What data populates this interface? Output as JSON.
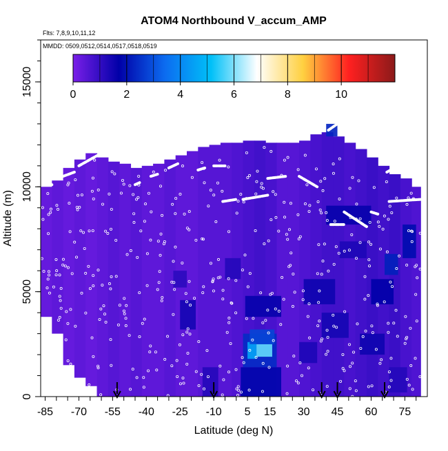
{
  "chart_data": {
    "type": "heatmap",
    "title": "ATOM4 Northbound V_accum_AMP",
    "subtitle_flights": "Flts: 7,8,9,10,11,12",
    "subtitle_dates": "MMDD: 0509,0512,0514,0517,0518,0519",
    "xlabel": "Latitude (deg N)",
    "ylabel": "Altitude (m)",
    "xlim": [
      -87,
      85
    ],
    "ylim": [
      0,
      17000
    ],
    "x_ticks": [
      -85,
      -70,
      -55,
      -40,
      -25,
      -10,
      5,
      15,
      30,
      45,
      60,
      75
    ],
    "y_ticks": [
      0,
      5000,
      10000,
      15000
    ],
    "colorbar": {
      "range": [
        0,
        12
      ],
      "ticks": [
        0,
        2,
        4,
        6,
        8,
        10
      ],
      "colors": [
        "#7a1fe8",
        "#0000a8",
        "#0c6cf0",
        "#00c0f8",
        "#ffffff",
        "#ffd040",
        "#ff2020",
        "#8b1a1a"
      ]
    },
    "grid": false,
    "arrows_latitude": [
      -53,
      -10,
      38,
      45,
      66
    ],
    "columns": [
      {
        "x": [
          -87,
          -82
        ],
        "top": 10000,
        "bottom": 3800,
        "v": 0.3
      },
      {
        "x": [
          -82,
          -77
        ],
        "top": 10300,
        "bottom": 3000,
        "v": 0.4
      },
      {
        "x": [
          -77,
          -72
        ],
        "top": 10900,
        "bottom": 1500,
        "v": 0.3
      },
      {
        "x": [
          -72,
          -67
        ],
        "top": 11300,
        "bottom": 900,
        "v": 0.4
      },
      {
        "x": [
          -67,
          -62
        ],
        "top": 11600,
        "bottom": 500,
        "v": 0.3
      },
      {
        "x": [
          -62,
          -57
        ],
        "top": 11400,
        "bottom": 0,
        "v": 0.4
      },
      {
        "x": [
          -57,
          -52
        ],
        "top": 11200,
        "bottom": 0,
        "v": 0.5
      },
      {
        "x": [
          -52,
          -47
        ],
        "top": 11100,
        "bottom": 0,
        "v": 0.4
      },
      {
        "x": [
          -47,
          -42
        ],
        "top": 10900,
        "bottom": 0,
        "v": 0.5
      },
      {
        "x": [
          -42,
          -37
        ],
        "top": 11000,
        "bottom": 0,
        "v": 0.4
      },
      {
        "x": [
          -37,
          -32
        ],
        "top": 11100,
        "bottom": 0,
        "v": 0.4
      },
      {
        "x": [
          -32,
          -27
        ],
        "top": 11300,
        "bottom": 0,
        "v": 0.5
      },
      {
        "x": [
          -27,
          -22
        ],
        "top": 11500,
        "bottom": 0,
        "v": 0.4
      },
      {
        "x": [
          -22,
          -17
        ],
        "top": 11700,
        "bottom": 0,
        "v": 0.4
      },
      {
        "x": [
          -17,
          -12
        ],
        "top": 11900,
        "bottom": 0,
        "v": 0.5
      },
      {
        "x": [
          -12,
          -7
        ],
        "top": 12000,
        "bottom": 0,
        "v": 0.5
      },
      {
        "x": [
          -7,
          -2
        ],
        "top": 12100,
        "bottom": 0,
        "v": 0.5
      },
      {
        "x": [
          -2,
          3
        ],
        "top": 12100,
        "bottom": 0,
        "v": 0.6
      },
      {
        "x": [
          3,
          8
        ],
        "top": 12200,
        "bottom": 0,
        "v": 0.7
      },
      {
        "x": [
          8,
          13
        ],
        "top": 12200,
        "bottom": 0,
        "v": 0.8
      },
      {
        "x": [
          13,
          18
        ],
        "top": 12100,
        "bottom": 0,
        "v": 0.7
      },
      {
        "x": [
          18,
          23
        ],
        "top": 12100,
        "bottom": 0,
        "v": 0.5
      },
      {
        "x": [
          23,
          28
        ],
        "top": 12100,
        "bottom": 0,
        "v": 0.5
      },
      {
        "x": [
          28,
          33
        ],
        "top": 12200,
        "bottom": 0,
        "v": 0.6
      },
      {
        "x": [
          33,
          38
        ],
        "top": 12500,
        "bottom": 0,
        "v": 0.7
      },
      {
        "x": [
          38,
          43
        ],
        "top": 12600,
        "bottom": 0,
        "v": 0.8
      },
      {
        "x": [
          43,
          48
        ],
        "top": 12400,
        "bottom": 0,
        "v": 0.8
      },
      {
        "x": [
          48,
          53
        ],
        "top": 12100,
        "bottom": 0,
        "v": 0.7
      },
      {
        "x": [
          53,
          58
        ],
        "top": 11800,
        "bottom": 0,
        "v": 0.8
      },
      {
        "x": [
          58,
          63
        ],
        "top": 11400,
        "bottom": 0,
        "v": 0.9
      },
      {
        "x": [
          63,
          68
        ],
        "top": 11000,
        "bottom": 0,
        "v": 0.8
      },
      {
        "x": [
          68,
          73
        ],
        "top": 10600,
        "bottom": 0,
        "v": 0.9
      },
      {
        "x": [
          73,
          78
        ],
        "top": 10400,
        "bottom": 0,
        "v": 0.7
      },
      {
        "x": [
          78,
          82
        ],
        "top": 10000,
        "bottom": 0,
        "v": 0.6
      }
    ],
    "patches": [
      {
        "x": [
          -25,
          -18
        ],
        "y": [
          3200,
          4600
        ],
        "v": 1.4
      },
      {
        "x": [
          -28,
          -22
        ],
        "y": [
          5200,
          6000
        ],
        "v": 1.1
      },
      {
        "x": [
          -15,
          -8
        ],
        "y": [
          0,
          1400
        ],
        "v": 1.2
      },
      {
        "x": [
          -5,
          2
        ],
        "y": [
          5600,
          6600
        ],
        "v": 1.2
      },
      {
        "x": [
          2,
          20
        ],
        "y": [
          0,
          1400
        ],
        "v": 1.8
      },
      {
        "x": [
          3,
          18
        ],
        "y": [
          1400,
          3000
        ],
        "v": 2.4
      },
      {
        "x": [
          5,
          9
        ],
        "y": [
          1800,
          2600
        ],
        "v": 4.5
      },
      {
        "x": [
          9,
          16
        ],
        "y": [
          1900,
          2500
        ],
        "v": 5.8
      },
      {
        "x": [
          6,
          17
        ],
        "y": [
          2500,
          3200
        ],
        "v": 2.8
      },
      {
        "x": [
          4,
          20
        ],
        "y": [
          3800,
          4800
        ],
        "v": 1.6
      },
      {
        "x": [
          28,
          36
        ],
        "y": [
          1600,
          2600
        ],
        "v": 1.3
      },
      {
        "x": [
          30,
          44
        ],
        "y": [
          4400,
          5600
        ],
        "v": 1.5
      },
      {
        "x": [
          38,
          50
        ],
        "y": [
          2800,
          4000
        ],
        "v": 1.4
      },
      {
        "x": [
          40,
          60
        ],
        "y": [
          8200,
          9100
        ],
        "v": 1.6
      },
      {
        "x": [
          46,
          58
        ],
        "y": [
          6600,
          7400
        ],
        "v": 1.3
      },
      {
        "x": [
          55,
          66
        ],
        "y": [
          2000,
          3000
        ],
        "v": 1.5
      },
      {
        "x": [
          60,
          70
        ],
        "y": [
          4400,
          5600
        ],
        "v": 1.7
      },
      {
        "x": [
          66,
          72
        ],
        "y": [
          5800,
          6800
        ],
        "v": 2.2
      },
      {
        "x": [
          74,
          80
        ],
        "y": [
          6600,
          8200
        ],
        "v": 1.9
      },
      {
        "x": [
          68,
          76
        ],
        "y": [
          200,
          1400
        ],
        "v": 1.2
      },
      {
        "x": [
          40,
          45
        ],
        "y": [
          12400,
          13000
        ],
        "v": 2.3
      }
    ],
    "flight_track_segments": [
      {
        "x": [
          -87,
          -82
        ],
        "y": [
          10100,
          10100
        ]
      },
      {
        "x": [
          -77,
          -72
        ],
        "y": [
          10500,
          10700
        ]
      },
      {
        "x": [
          -70,
          -60
        ],
        "y": [
          11000,
          11600
        ]
      },
      {
        "x": [
          -45,
          -43
        ],
        "y": [
          10100,
          10200
        ]
      },
      {
        "x": [
          -38,
          -35
        ],
        "y": [
          10500,
          10600
        ]
      },
      {
        "x": [
          -30,
          -26
        ],
        "y": [
          10900,
          11100
        ]
      },
      {
        "x": [
          -22,
          -20
        ],
        "y": [
          12300,
          12400
        ]
      },
      {
        "x": [
          -17,
          -14
        ],
        "y": [
          10800,
          10900
        ]
      },
      {
        "x": [
          -10,
          -5
        ],
        "y": [
          11000,
          11000
        ]
      },
      {
        "x": [
          -6,
          0
        ],
        "y": [
          9300,
          9400
        ]
      },
      {
        "x": [
          3,
          14
        ],
        "y": [
          9400,
          9600
        ]
      },
      {
        "x": [
          14,
          22
        ],
        "y": [
          10400,
          10500
        ]
      },
      {
        "x": [
          28,
          36
        ],
        "y": [
          10500,
          10000
        ]
      },
      {
        "x": [
          41,
          45
        ],
        "y": [
          12700,
          13000
        ]
      },
      {
        "x": [
          42,
          48
        ],
        "y": [
          8200,
          8200
        ]
      },
      {
        "x": [
          48,
          58
        ],
        "y": [
          8800,
          8100
        ]
      },
      {
        "x": [
          60,
          63
        ],
        "y": [
          8800,
          8700
        ]
      },
      {
        "x": [
          67,
          72
        ],
        "y": [
          10700,
          11000
        ]
      },
      {
        "x": [
          68,
          82
        ],
        "y": [
          9300,
          9400
        ]
      }
    ]
  }
}
